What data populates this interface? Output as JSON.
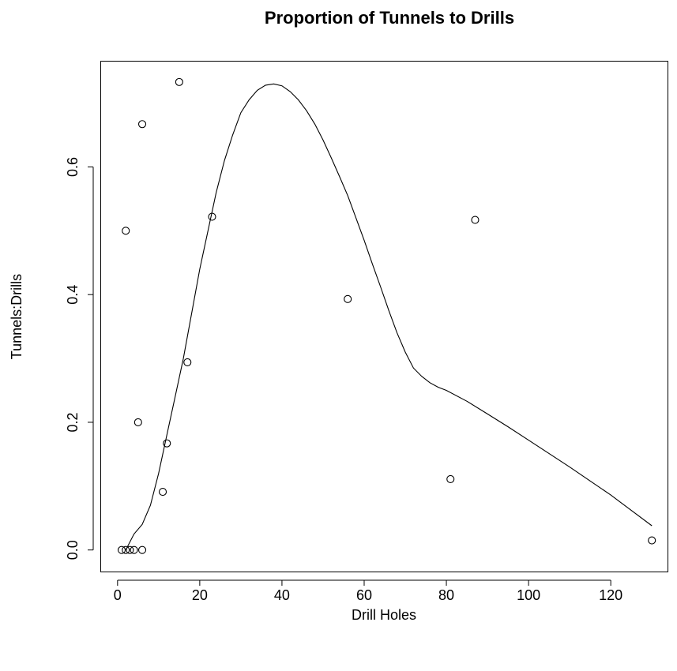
{
  "chart_data": {
    "type": "scatter",
    "title": "Proportion of Tunnels to Drills",
    "xlabel": "Drill Holes",
    "ylabel": "Tunnels:Drills",
    "xlim": [
      -4,
      134
    ],
    "ylim": [
      -0.035,
      0.765
    ],
    "x_ticks": [
      0,
      20,
      40,
      60,
      80,
      100,
      120
    ],
    "x_tick_labels": [
      "0",
      "20",
      "40",
      "60",
      "80",
      "100",
      "120"
    ],
    "y_ticks": [
      0.0,
      0.2,
      0.4,
      0.6
    ],
    "y_tick_labels": [
      "0.0",
      "0.2",
      "0.4",
      "0.6"
    ],
    "grid": false,
    "points": [
      {
        "x": 1,
        "y": 0.0
      },
      {
        "x": 2,
        "y": 0.0
      },
      {
        "x": 3,
        "y": 0.0
      },
      {
        "x": 4,
        "y": 0.0
      },
      {
        "x": 6,
        "y": 0.0
      },
      {
        "x": 2,
        "y": 0.5
      },
      {
        "x": 5,
        "y": 0.2
      },
      {
        "x": 6,
        "y": 0.667
      },
      {
        "x": 11,
        "y": 0.091
      },
      {
        "x": 12,
        "y": 0.167
      },
      {
        "x": 15,
        "y": 0.733
      },
      {
        "x": 17,
        "y": 0.294
      },
      {
        "x": 23,
        "y": 0.522
      },
      {
        "x": 56,
        "y": 0.393
      },
      {
        "x": 81,
        "y": 0.111
      },
      {
        "x": 87,
        "y": 0.517
      },
      {
        "x": 130,
        "y": 0.015
      }
    ],
    "smooth_line": {
      "x": [
        2,
        4,
        6,
        8,
        10,
        12,
        14,
        16,
        18,
        20,
        22,
        24,
        26,
        28,
        30,
        32,
        34,
        36,
        38,
        40,
        42,
        44,
        46,
        48,
        50,
        52,
        54,
        56,
        58,
        60,
        62,
        64,
        66,
        68,
        70,
        72,
        74,
        76,
        78,
        80,
        85,
        90,
        95,
        100,
        105,
        110,
        115,
        120,
        125,
        130
      ],
      "y": [
        0.0,
        0.025,
        0.04,
        0.07,
        0.12,
        0.18,
        0.24,
        0.3,
        0.37,
        0.44,
        0.5,
        0.56,
        0.61,
        0.65,
        0.685,
        0.705,
        0.72,
        0.728,
        0.73,
        0.727,
        0.718,
        0.705,
        0.688,
        0.667,
        0.642,
        0.614,
        0.585,
        0.555,
        0.52,
        0.485,
        0.448,
        0.412,
        0.375,
        0.34,
        0.31,
        0.285,
        0.272,
        0.262,
        0.255,
        0.25,
        0.233,
        0.213,
        0.193,
        0.172,
        0.151,
        0.13,
        0.108,
        0.086,
        0.062,
        0.038
      ]
    }
  }
}
